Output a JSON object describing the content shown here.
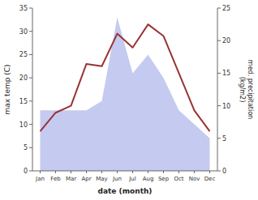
{
  "chart_data": {
    "type": "line",
    "xlabel": "date (month)",
    "ylabel": "max temp (C)",
    "y2label": "med. precipitation\n(kg/m2)",
    "categories": [
      "Jan",
      "Feb",
      "Mar",
      "Apr",
      "May",
      "Jun",
      "Jul",
      "Aug",
      "Sep",
      "Oct",
      "Nov",
      "Dec"
    ],
    "series": [
      {
        "type": "area",
        "color": "#c5caf0",
        "values": [
          13,
          13,
          13,
          13,
          15,
          33,
          21,
          25,
          20,
          13,
          10,
          7
        ]
      },
      {
        "type": "line",
        "color": "#993333",
        "values": [
          8.5,
          12.5,
          14.0,
          23.0,
          22.5,
          29.5,
          26.5,
          31.5,
          29.0,
          21.0,
          13.0,
          8.5
        ]
      }
    ],
    "ylim": [
      0,
      35
    ],
    "yticks": [
      0,
      5,
      10,
      15,
      20,
      25,
      30,
      35
    ],
    "y2lim": [
      0,
      25
    ],
    "y2ticks": [
      0,
      5,
      10,
      15,
      20,
      25
    ],
    "grid": false
  }
}
